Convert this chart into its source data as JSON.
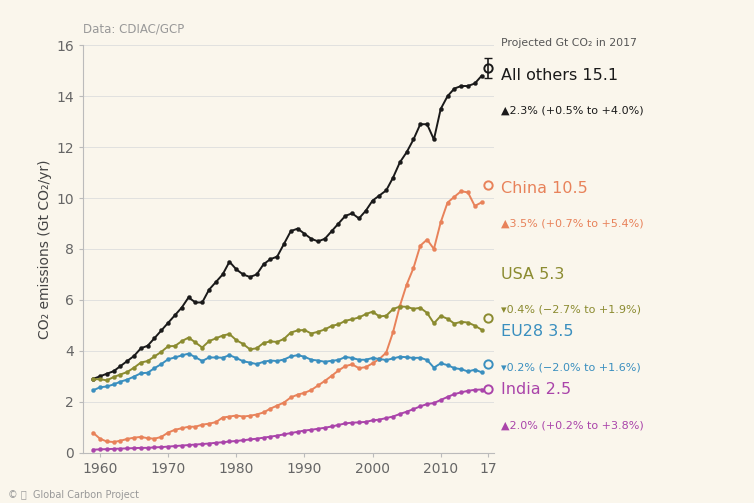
{
  "background_color": "#faf6ec",
  "plot_bg_color": "#faf6ec",
  "title_data": "Data: CDIAC/GCP",
  "ylabel": "CO₂ emissions (Gt CO₂/yr)",
  "ylim": [
    0,
    16
  ],
  "yticks": [
    0,
    2,
    4,
    6,
    8,
    10,
    12,
    14,
    16
  ],
  "xticks": [
    1960,
    1970,
    1980,
    1990,
    2000,
    2010,
    2017
  ],
  "xticklabels": [
    "1960",
    "1970",
    "1980",
    "1990",
    "2000",
    "2010",
    "17"
  ],
  "legend_title": "Projected Gt CO₂ in 2017",
  "series": {
    "all_others": {
      "color": "#1a1a1a",
      "label": "All others 15.1",
      "sublabel": "▲2.3% (+0.5% to +4.0%)",
      "projected": 15.1
    },
    "china": {
      "color": "#e8825a",
      "label": "China 10.5",
      "sublabel": "▲3.5% (+0.7% to +5.4%)",
      "projected": 10.5
    },
    "usa": {
      "color": "#8b8b30",
      "label": "USA 5.3",
      "sublabel": "▾0.4% (−2.7% to +1.9%)",
      "projected": 5.3
    },
    "eu28": {
      "color": "#3a8fbf",
      "label": "EU28 3.5",
      "sublabel": "▾0.2% (−2.0% to +1.6%)",
      "projected": 3.5
    },
    "india": {
      "color": "#aa44aa",
      "label": "India 2.5",
      "sublabel": "▲2.0% (+0.2% to +3.8%)",
      "projected": 2.5
    }
  },
  "all_others_data": {
    "years": [
      1959,
      1960,
      1961,
      1962,
      1963,
      1964,
      1965,
      1966,
      1967,
      1968,
      1969,
      1970,
      1971,
      1972,
      1973,
      1974,
      1975,
      1976,
      1977,
      1978,
      1979,
      1980,
      1981,
      1982,
      1983,
      1984,
      1985,
      1986,
      1987,
      1988,
      1989,
      1990,
      1991,
      1992,
      1993,
      1994,
      1995,
      1996,
      1997,
      1998,
      1999,
      2000,
      2001,
      2002,
      2003,
      2004,
      2005,
      2006,
      2007,
      2008,
      2009,
      2010,
      2011,
      2012,
      2013,
      2014,
      2015,
      2016
    ],
    "values": [
      2.9,
      3.0,
      3.1,
      3.2,
      3.4,
      3.6,
      3.8,
      4.1,
      4.2,
      4.5,
      4.8,
      5.1,
      5.4,
      5.7,
      6.1,
      5.9,
      5.9,
      6.4,
      6.7,
      7.0,
      7.5,
      7.2,
      7.0,
      6.9,
      7.0,
      7.4,
      7.6,
      7.7,
      8.2,
      8.7,
      8.8,
      8.6,
      8.4,
      8.3,
      8.4,
      8.7,
      9.0,
      9.3,
      9.4,
      9.2,
      9.5,
      9.9,
      10.1,
      10.3,
      10.8,
      11.4,
      11.8,
      12.3,
      12.9,
      12.9,
      12.3,
      13.5,
      14.0,
      14.3,
      14.4,
      14.4,
      14.5,
      14.8
    ]
  },
  "china_data": {
    "years": [
      1959,
      1960,
      1961,
      1962,
      1963,
      1964,
      1965,
      1966,
      1967,
      1968,
      1969,
      1970,
      1971,
      1972,
      1973,
      1974,
      1975,
      1976,
      1977,
      1978,
      1979,
      1980,
      1981,
      1982,
      1983,
      1984,
      1985,
      1986,
      1987,
      1988,
      1989,
      1990,
      1991,
      1992,
      1993,
      1994,
      1995,
      1996,
      1997,
      1998,
      1999,
      2000,
      2001,
      2002,
      2003,
      2004,
      2005,
      2006,
      2007,
      2008,
      2009,
      2010,
      2011,
      2012,
      2013,
      2014,
      2015,
      2016
    ],
    "values": [
      0.78,
      0.55,
      0.44,
      0.42,
      0.47,
      0.54,
      0.59,
      0.62,
      0.57,
      0.55,
      0.62,
      0.79,
      0.9,
      0.96,
      1.02,
      1.02,
      1.1,
      1.14,
      1.2,
      1.38,
      1.42,
      1.46,
      1.42,
      1.45,
      1.5,
      1.58,
      1.73,
      1.85,
      1.97,
      2.17,
      2.28,
      2.35,
      2.46,
      2.64,
      2.82,
      3.02,
      3.23,
      3.4,
      3.47,
      3.32,
      3.36,
      3.51,
      3.68,
      3.93,
      4.73,
      5.76,
      6.6,
      7.25,
      8.13,
      8.37,
      8.0,
      9.05,
      9.82,
      10.05,
      10.27,
      10.22,
      9.69,
      9.83
    ]
  },
  "usa_data": {
    "years": [
      1959,
      1960,
      1961,
      1962,
      1963,
      1964,
      1965,
      1966,
      1967,
      1968,
      1969,
      1970,
      1971,
      1972,
      1973,
      1974,
      1975,
      1976,
      1977,
      1978,
      1979,
      1980,
      1981,
      1982,
      1983,
      1984,
      1985,
      1986,
      1987,
      1988,
      1989,
      1990,
      1991,
      1992,
      1993,
      1994,
      1995,
      1996,
      1997,
      1998,
      1999,
      2000,
      2001,
      2002,
      2003,
      2004,
      2005,
      2006,
      2007,
      2008,
      2009,
      2010,
      2011,
      2012,
      2013,
      2014,
      2015,
      2016
    ],
    "values": [
      2.88,
      2.89,
      2.84,
      2.97,
      3.07,
      3.17,
      3.34,
      3.54,
      3.6,
      3.78,
      3.96,
      4.18,
      4.19,
      4.38,
      4.52,
      4.33,
      4.13,
      4.38,
      4.49,
      4.6,
      4.66,
      4.42,
      4.27,
      4.06,
      4.1,
      4.31,
      4.37,
      4.35,
      4.47,
      4.72,
      4.8,
      4.82,
      4.68,
      4.75,
      4.84,
      4.98,
      5.04,
      5.18,
      5.24,
      5.31,
      5.44,
      5.54,
      5.35,
      5.38,
      5.64,
      5.74,
      5.73,
      5.65,
      5.69,
      5.49,
      5.08,
      5.37,
      5.26,
      5.07,
      5.14,
      5.11,
      4.99,
      4.83
    ]
  },
  "eu28_data": {
    "years": [
      1959,
      1960,
      1961,
      1962,
      1963,
      1964,
      1965,
      1966,
      1967,
      1968,
      1969,
      1970,
      1971,
      1972,
      1973,
      1974,
      1975,
      1976,
      1977,
      1978,
      1979,
      1980,
      1981,
      1982,
      1983,
      1984,
      1985,
      1986,
      1987,
      1988,
      1989,
      1990,
      1991,
      1992,
      1993,
      1994,
      1995,
      1996,
      1997,
      1998,
      1999,
      2000,
      2001,
      2002,
      2003,
      2004,
      2005,
      2006,
      2007,
      2008,
      2009,
      2010,
      2011,
      2012,
      2013,
      2014,
      2015,
      2016
    ],
    "values": [
      2.45,
      2.57,
      2.6,
      2.68,
      2.79,
      2.87,
      2.99,
      3.12,
      3.14,
      3.32,
      3.48,
      3.67,
      3.74,
      3.82,
      3.89,
      3.75,
      3.6,
      3.74,
      3.74,
      3.73,
      3.83,
      3.72,
      3.59,
      3.54,
      3.48,
      3.57,
      3.62,
      3.6,
      3.66,
      3.78,
      3.83,
      3.77,
      3.65,
      3.62,
      3.57,
      3.61,
      3.64,
      3.76,
      3.72,
      3.65,
      3.65,
      3.72,
      3.68,
      3.64,
      3.7,
      3.77,
      3.75,
      3.72,
      3.73,
      3.64,
      3.34,
      3.51,
      3.44,
      3.32,
      3.28,
      3.19,
      3.26,
      3.16
    ]
  },
  "india_data": {
    "years": [
      1959,
      1960,
      1961,
      1962,
      1963,
      1964,
      1965,
      1966,
      1967,
      1968,
      1969,
      1970,
      1971,
      1972,
      1973,
      1974,
      1975,
      1976,
      1977,
      1978,
      1979,
      1980,
      1981,
      1982,
      1983,
      1984,
      1985,
      1986,
      1987,
      1988,
      1989,
      1990,
      1991,
      1992,
      1993,
      1994,
      1995,
      1996,
      1997,
      1998,
      1999,
      2000,
      2001,
      2002,
      2003,
      2004,
      2005,
      2006,
      2007,
      2008,
      2009,
      2010,
      2011,
      2012,
      2013,
      2014,
      2015,
      2016
    ],
    "values": [
      0.12,
      0.13,
      0.14,
      0.15,
      0.16,
      0.17,
      0.18,
      0.19,
      0.19,
      0.21,
      0.22,
      0.24,
      0.26,
      0.28,
      0.3,
      0.32,
      0.34,
      0.36,
      0.39,
      0.41,
      0.44,
      0.46,
      0.49,
      0.52,
      0.55,
      0.59,
      0.63,
      0.67,
      0.72,
      0.77,
      0.82,
      0.87,
      0.9,
      0.94,
      0.98,
      1.03,
      1.09,
      1.15,
      1.18,
      1.19,
      1.21,
      1.27,
      1.3,
      1.36,
      1.42,
      1.52,
      1.61,
      1.71,
      1.82,
      1.91,
      1.95,
      2.07,
      2.19,
      2.3,
      2.37,
      2.43,
      2.47,
      2.48
    ]
  }
}
